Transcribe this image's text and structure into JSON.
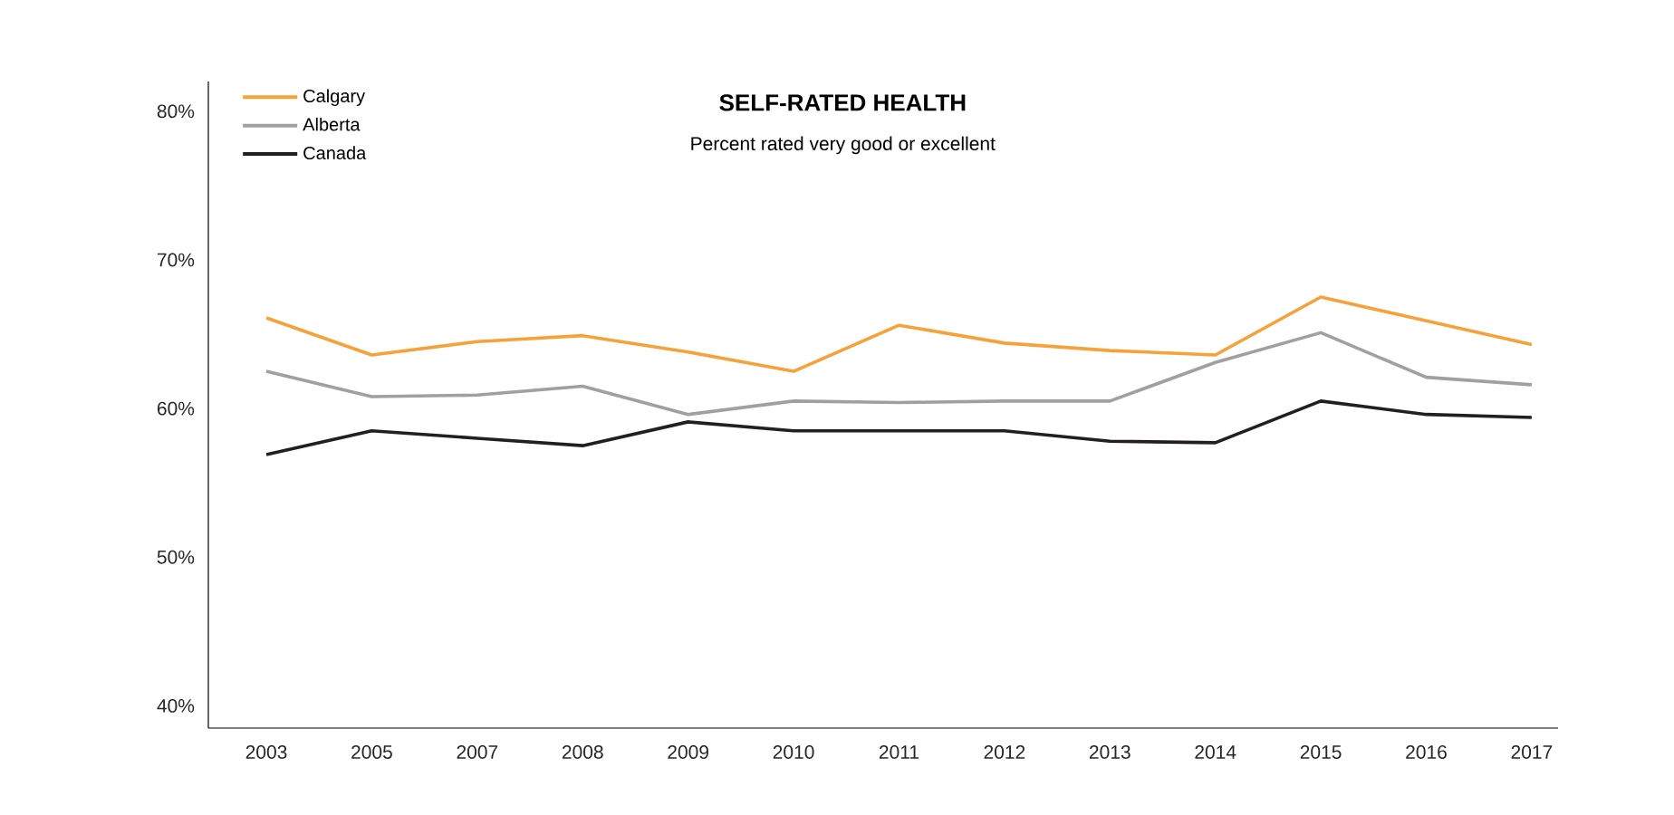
{
  "chart_data": {
    "type": "line",
    "title": "SELF-RATED HEALTH",
    "subtitle": "Percent rated very good or excellent",
    "categories": [
      "2003",
      "2005",
      "2007",
      "2008",
      "2009",
      "2010",
      "2011",
      "2012",
      "2013",
      "2014",
      "2015",
      "2016",
      "2017"
    ],
    "series": [
      {
        "name": "Calgary",
        "color": "#f7a13a",
        "values": [
          66.1,
          63.6,
          64.5,
          64.9,
          63.8,
          62.5,
          65.6,
          64.4,
          63.9,
          63.6,
          67.5,
          65.9,
          64.3
        ]
      },
      {
        "name": "Alberta",
        "color": "#a0a0a2",
        "values": [
          62.5,
          60.8,
          60.9,
          61.5,
          59.6,
          60.5,
          60.4,
          60.5,
          60.5,
          63.1,
          65.1,
          62.1,
          61.6
        ]
      },
      {
        "name": "Canada",
        "color": "#231f20",
        "values": [
          56.9,
          58.5,
          58.0,
          57.5,
          59.1,
          58.5,
          58.5,
          58.5,
          57.8,
          57.7,
          60.5,
          59.6,
          59.4
        ]
      }
    ],
    "ylim": [
      38.5,
      82
    ],
    "yticks": [
      {
        "value": 40,
        "label": "40%"
      },
      {
        "value": 50,
        "label": "50%"
      },
      {
        "value": 60,
        "label": "60%"
      },
      {
        "value": 70,
        "label": "70%"
      },
      {
        "value": 80,
        "label": "80%"
      }
    ],
    "legend": "top left",
    "grid": false,
    "marker": "none",
    "line_style": "solid"
  }
}
